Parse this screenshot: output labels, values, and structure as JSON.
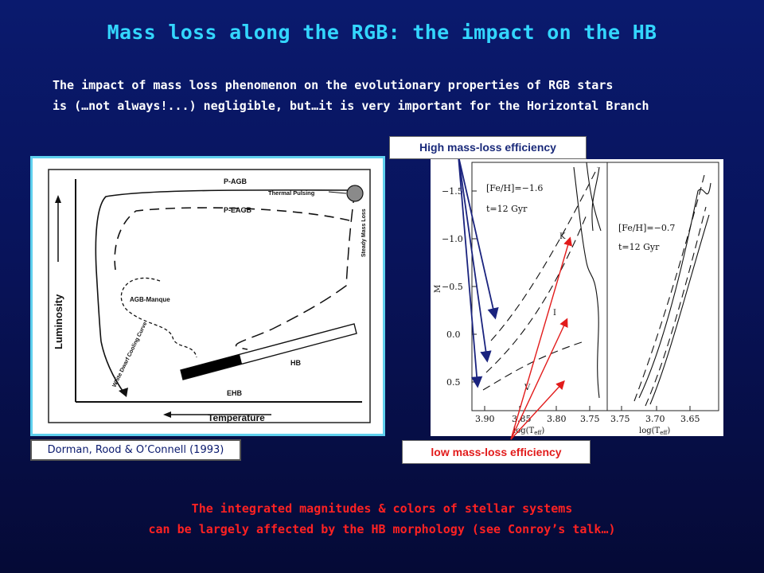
{
  "title": "Mass loss along the RGB: the impact on the HB",
  "intro": {
    "line1": "The impact of mass loss phenomenon on the evolutionary properties of RGB stars",
    "line2": "is (…not always!...) negligible, but…it is very important for the Horizontal Branch"
  },
  "left_figure": {
    "labels": {
      "p_agb": "P-AGB",
      "thermal_pulsing": "Thermal Pulsing",
      "p_eagb": "P-EAGB",
      "steady_mass_loss": "Steady Mass Loss",
      "agb_manque": "AGB-Manque",
      "luminosity": "Luminosity",
      "white_dwarf": "White Dwarf Cooling Curve",
      "ehb": "EHB",
      "hb": "HB",
      "temperature": "Temperature"
    },
    "citation": "Dorman, Rood & O’Connell (1993)"
  },
  "right_figure": {
    "high_label": "High mass-loss efficiency",
    "low_label": "low mass-loss efficiency",
    "panel_a": {
      "feh": "[Fe/H]=−1.6",
      "age": "t=12 Gyr",
      "x_ticks": [
        "3.90",
        "3.85",
        "3.80",
        "3.75"
      ],
      "x_label": "log(T",
      "x_sub": "eff",
      "y_ticks": [
        "−1.5",
        "−1.0",
        "−0.5",
        "0.0",
        "0.5"
      ],
      "y_label": "M",
      "track_labels": [
        "K",
        "I",
        "V"
      ]
    },
    "panel_b": {
      "feh": "[Fe/H]=−0.7",
      "age": "t=12 Gyr",
      "x_ticks": [
        "3.75",
        "3.70",
        "3.65"
      ],
      "x_label": "log(T",
      "x_sub": "eff"
    },
    "colors": {
      "high_arrow": "#1a237e",
      "low_arrow": "#e21b1b"
    }
  },
  "conclusion": {
    "line1": "The integrated magnitudes & colors of stellar systems",
    "line2": "can be largely affected by the HB morphology (see Conroy’s talk…)"
  }
}
